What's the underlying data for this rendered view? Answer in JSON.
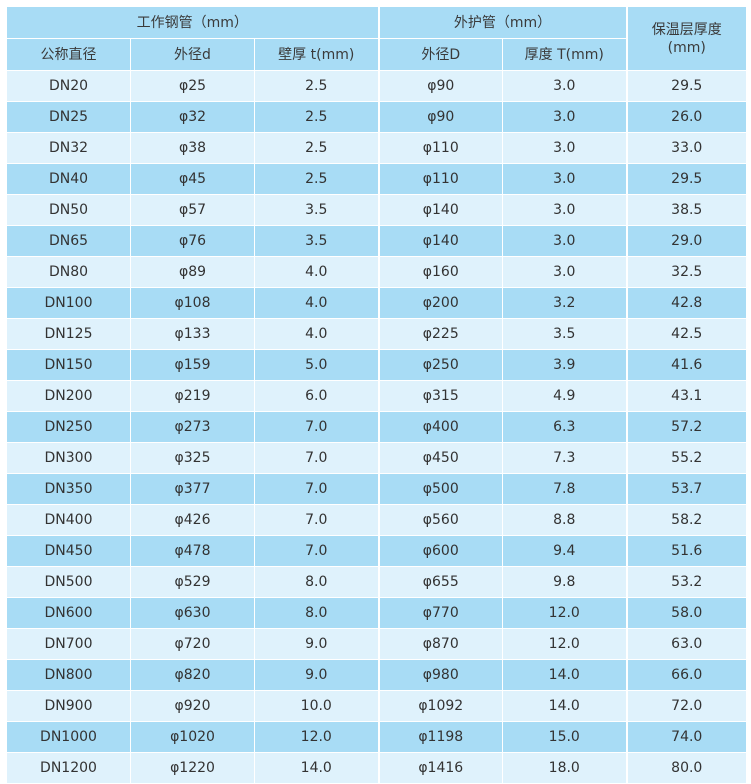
{
  "header": {
    "group_work_pipe": "工作钢管（mm）",
    "group_outer_pipe": "外护管（mm）",
    "insulation_line1": "保温层厚度",
    "insulation_line2": "(mm)",
    "col_nominal": "公称直径",
    "col_outer_d": "外径d",
    "col_wall": "壁厚 t(mm)",
    "col_outer_D": "外径D",
    "col_thickness_T": "厚度 T(mm)"
  },
  "rows": [
    [
      "DN20",
      "φ25",
      "2.5",
      "φ90",
      "3.0",
      "29.5"
    ],
    [
      "DN25",
      "φ32",
      "2.5",
      "φ90",
      "3.0",
      "26.0"
    ],
    [
      "DN32",
      "φ38",
      "2.5",
      "φ110",
      "3.0",
      "33.0"
    ],
    [
      "DN40",
      "φ45",
      "2.5",
      "φ110",
      "3.0",
      "29.5"
    ],
    [
      "DN50",
      "φ57",
      "3.5",
      "φ140",
      "3.0",
      "38.5"
    ],
    [
      "DN65",
      "φ76",
      "3.5",
      "φ140",
      "3.0",
      "29.0"
    ],
    [
      "DN80",
      "φ89",
      "4.0",
      "φ160",
      "3.0",
      "32.5"
    ],
    [
      "DN100",
      "φ108",
      "4.0",
      "φ200",
      "3.2",
      "42.8"
    ],
    [
      "DN125",
      "φ133",
      "4.0",
      "φ225",
      "3.5",
      "42.5"
    ],
    [
      "DN150",
      "φ159",
      "5.0",
      "φ250",
      "3.9",
      "41.6"
    ],
    [
      "DN200",
      "φ219",
      "6.0",
      "φ315",
      "4.9",
      "43.1"
    ],
    [
      "DN250",
      "φ273",
      "7.0",
      "φ400",
      "6.3",
      "57.2"
    ],
    [
      "DN300",
      "φ325",
      "7.0",
      "φ450",
      "7.3",
      "55.2"
    ],
    [
      "DN350",
      "φ377",
      "7.0",
      "φ500",
      "7.8",
      "53.7"
    ],
    [
      "DN400",
      "φ426",
      "7.0",
      "φ560",
      "8.8",
      "58.2"
    ],
    [
      "DN450",
      "φ478",
      "7.0",
      "φ600",
      "9.4",
      "51.6"
    ],
    [
      "DN500",
      "φ529",
      "8.0",
      "φ655",
      "9.8",
      "53.2"
    ],
    [
      "DN600",
      "φ630",
      "8.0",
      "φ770",
      "12.0",
      "58.0"
    ],
    [
      "DN700",
      "φ720",
      "9.0",
      "φ870",
      "12.0",
      "63.0"
    ],
    [
      "DN800",
      "φ820",
      "9.0",
      "φ980",
      "14.0",
      "66.0"
    ],
    [
      "DN900",
      "φ920",
      "10.0",
      "φ1092",
      "14.0",
      "72.0"
    ],
    [
      "DN1000",
      "φ1020",
      "12.0",
      "φ1198",
      "15.0",
      "74.0"
    ],
    [
      "DN1200",
      "φ1220",
      "14.0",
      "φ1416",
      "18.0",
      "80.0"
    ]
  ],
  "colors": {
    "header_bg": "#a8dcf5",
    "row_light": "#dff2fc",
    "row_dark": "#a8dcf5",
    "grid": "#ffffff"
  }
}
